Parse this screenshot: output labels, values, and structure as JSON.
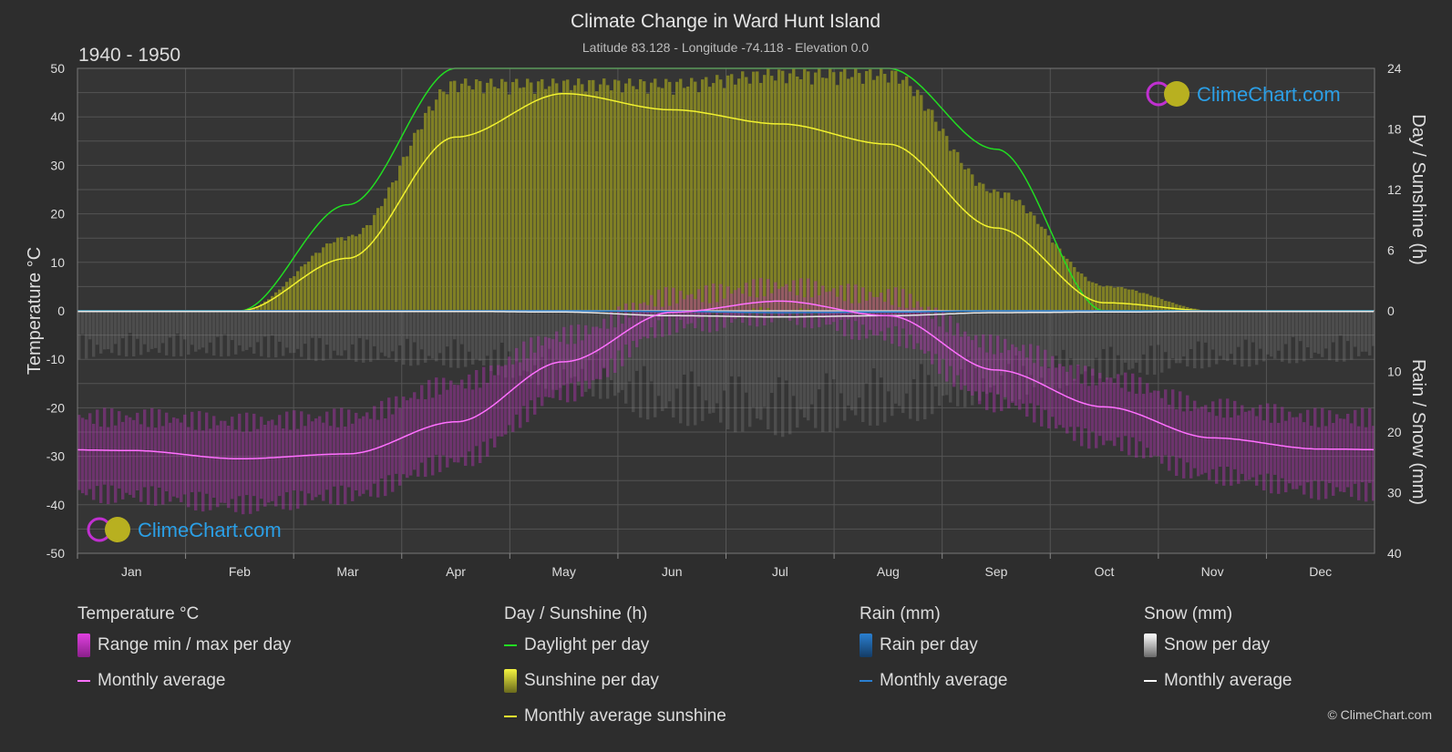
{
  "title": "Climate Change in Ward Hunt Island",
  "subtitle": "Latitude 83.128 - Longitude -74.118 - Elevation 0.0",
  "period": "1940 - 1950",
  "watermark": "ClimeChart.com",
  "copyright": "© ClimeChart.com",
  "axes": {
    "left_label": "Temperature °C",
    "right_top_label": "Day / Sunshine (h)",
    "right_bottom_label": "Rain / Snow (mm)",
    "left_ticks": [
      "50",
      "40",
      "30",
      "20",
      "10",
      "0",
      "-10",
      "-20",
      "-30",
      "-40",
      "-50"
    ],
    "right_top_ticks": [
      "24",
      "18",
      "12",
      "6",
      "0"
    ],
    "right_bottom_ticks": [
      "10",
      "20",
      "30",
      "40"
    ]
  },
  "legend": {
    "temperature": {
      "title": "Temperature °C",
      "range": "Range min / max per day",
      "avg": "Monthly average"
    },
    "sun": {
      "title": "Day / Sunshine (h)",
      "daylight": "Daylight per day",
      "sunshine": "Sunshine per day",
      "avg": "Monthly average sunshine"
    },
    "rain": {
      "title": "Rain (mm)",
      "per_day": "Rain per day",
      "avg": "Monthly average"
    },
    "snow": {
      "title": "Snow (mm)",
      "per_day": "Snow per day",
      "avg": "Monthly average"
    }
  },
  "colors": {
    "background": "#2d2d2d",
    "temp_range": "#c030c0",
    "temp_avg": "#ff70ff",
    "daylight": "#22dd22",
    "sunshine_fill": "#8c8c22",
    "sunshine_avg": "#f2f230",
    "rain": "#2a7fd0",
    "snow": "#8a8a8a",
    "snow_avg": "#ffffff",
    "logo_blue": "#2b9fe6"
  },
  "chart_data": {
    "type": "line",
    "categories": [
      "Jan",
      "Feb",
      "Mar",
      "Apr",
      "May",
      "Jun",
      "Jul",
      "Aug",
      "Sep",
      "Oct",
      "Nov",
      "Dec"
    ],
    "temp_ylim": [
      -50,
      50
    ],
    "sun_ylim": [
      0,
      24
    ],
    "precip_ylim": [
      0,
      40
    ],
    "series": [
      {
        "name": "Monthly average",
        "axis": "temperature",
        "values": [
          -28.8,
          -30.5,
          -29.5,
          -22.9,
          -10.5,
          -0.3,
          2.0,
          -1.0,
          -12.2,
          -19.8,
          -26.2,
          -28.5
        ]
      },
      {
        "name": "Range min / max per day",
        "axis": "temperature",
        "min": [
          -38,
          -40,
          -38,
          -31,
          -17,
          -3,
          -1,
          -5,
          -19,
          -27,
          -34,
          -37
        ],
        "max": [
          -22,
          -23,
          -22,
          -15,
          -5,
          3,
          5,
          3,
          -7,
          -14,
          -20,
          -22
        ]
      },
      {
        "name": "Daylight per day",
        "axis": "sun",
        "values": [
          0,
          0,
          10.5,
          24,
          24,
          24,
          24,
          24,
          16,
          0,
          0,
          0
        ]
      },
      {
        "name": "Monthly average sunshine",
        "axis": "sun",
        "values": [
          0,
          0,
          5.2,
          17.2,
          21.5,
          19.9,
          18.5,
          16.5,
          8.2,
          0.8,
          0,
          0
        ]
      },
      {
        "name": "Sunshine per day",
        "axis": "sun",
        "values": [
          0,
          0,
          7.5,
          23,
          23,
          23,
          24,
          24,
          12,
          2.5,
          0,
          0
        ]
      },
      {
        "name": "Rain per day",
        "axis": "precip",
        "values": [
          0,
          0,
          0,
          0,
          0,
          0.1,
          0.2,
          0.1,
          0,
          0,
          0,
          0
        ]
      },
      {
        "name": "Monthly average",
        "axis": "precip",
        "legend_group": "rain",
        "values": [
          0,
          0,
          0,
          0,
          0,
          0.1,
          0.3,
          0.2,
          0,
          0,
          0,
          0
        ]
      },
      {
        "name": "Snow per day",
        "axis": "precip",
        "values": [
          8,
          8,
          9,
          10,
          14,
          20,
          22,
          20,
          16,
          12,
          10,
          9
        ]
      },
      {
        "name": "Monthly average",
        "axis": "precip",
        "legend_group": "snow",
        "values": [
          0.1,
          0.1,
          0.1,
          0.1,
          0.2,
          0.8,
          1.0,
          0.8,
          0.3,
          0.2,
          0.1,
          0.1
        ]
      }
    ]
  }
}
